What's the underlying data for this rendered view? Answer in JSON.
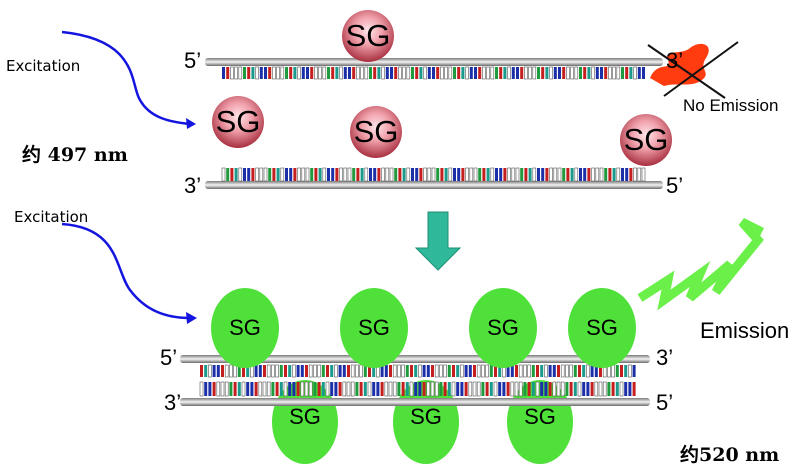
{
  "colors": {
    "arrow_blue": "#1515e0",
    "sg_red_fill": "#e07a86",
    "sg_green_fill": "#4fe03a",
    "teal_arrow": "#2fb99a",
    "emission_squiggle": "#6bf04a",
    "quench_red": "#ff3b10",
    "base_red": "#c41e1e",
    "base_blue": "#1b2fa8",
    "base_green": "#1f9a3c",
    "base_teal": "#1a9a8a"
  },
  "icons": {
    "excitation_arrow": "curved-arrow-icon",
    "process_arrow": "down-arrow-icon",
    "emission": "squiggle-wave-icon",
    "no_emission_mark": "cross-icon"
  },
  "top": {
    "excitation_label": "Excitation",
    "wavelength_label": "约 497 nm",
    "strand1_left_end": "5’",
    "strand1_right_end": "3’",
    "strand2_left_end": "3’",
    "strand2_right_end": "5’",
    "dye_label": "SG",
    "no_emission_label": "No Emission"
  },
  "bottom": {
    "excitation_label": "Excitation",
    "wavelength_label": "约520 nm",
    "strand1_left_end": "5’",
    "strand1_right_end": "3’",
    "strand2_left_end": "3’",
    "strand2_right_end": "5’",
    "dye_label": "SG",
    "emission_label": "Emission"
  }
}
